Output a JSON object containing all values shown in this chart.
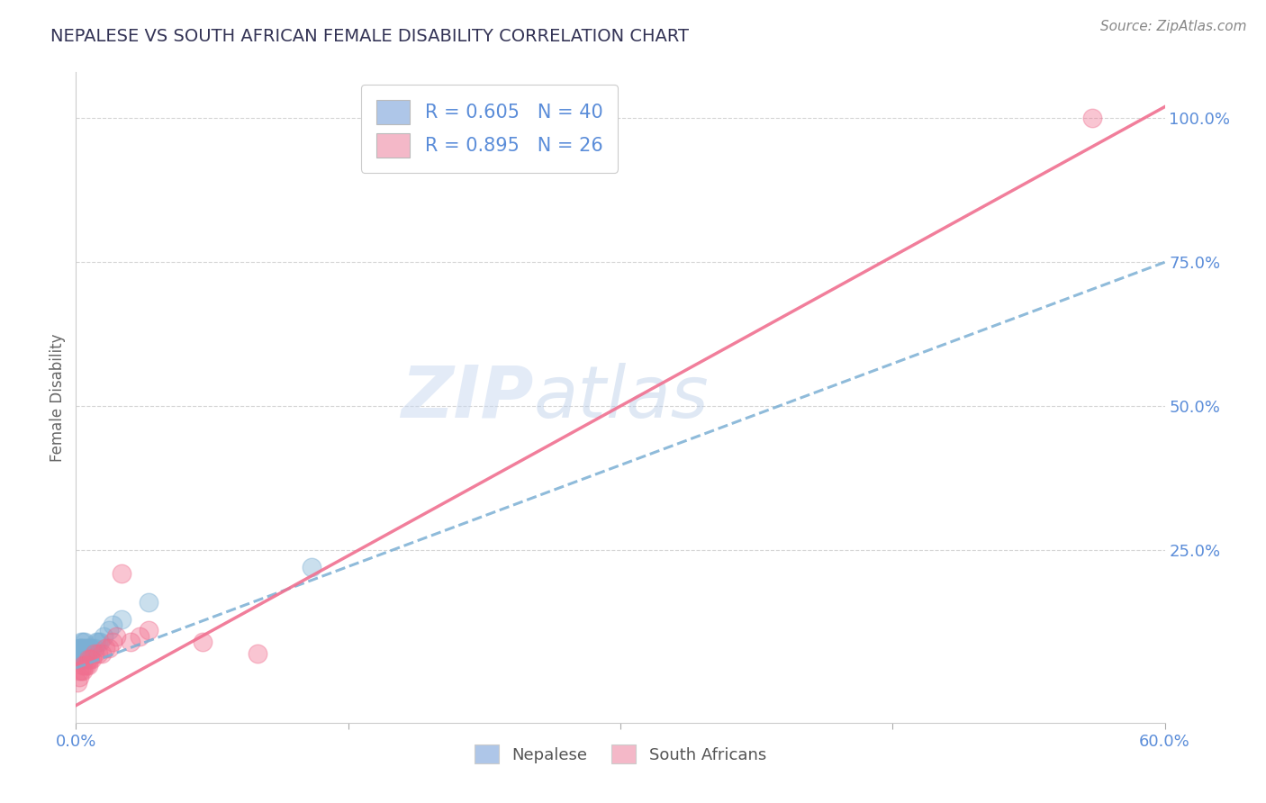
{
  "title": "NEPALESE VS SOUTH AFRICAN FEMALE DISABILITY CORRELATION CHART",
  "source": "Source: ZipAtlas.com",
  "ylabel": "Female Disability",
  "xlim": [
    0.0,
    0.6
  ],
  "ylim": [
    -0.05,
    1.08
  ],
  "yticks": [
    0.25,
    0.5,
    0.75,
    1.0
  ],
  "ytick_labels": [
    "25.0%",
    "50.0%",
    "75.0%",
    "100.0%"
  ],
  "xtick_positions": [
    0.0,
    0.15,
    0.3,
    0.45,
    0.6
  ],
  "xtick_labels": [
    "0.0%",
    "",
    "",
    "",
    "60.0%"
  ],
  "legend_entries": [
    {
      "label": "R = 0.605   N = 40",
      "color": "#aec6e8"
    },
    {
      "label": "R = 0.895   N = 26",
      "color": "#f4b8c8"
    }
  ],
  "bottom_legend": [
    "Nepalese",
    "South Africans"
  ],
  "bottom_legend_colors": [
    "#aec6e8",
    "#f4b8c8"
  ],
  "watermark": "ZIPatlas",
  "blue_scatter_x": [
    0.001,
    0.001,
    0.001,
    0.002,
    0.002,
    0.002,
    0.002,
    0.003,
    0.003,
    0.003,
    0.003,
    0.003,
    0.003,
    0.004,
    0.004,
    0.004,
    0.004,
    0.004,
    0.005,
    0.005,
    0.005,
    0.005,
    0.006,
    0.006,
    0.006,
    0.007,
    0.007,
    0.008,
    0.008,
    0.009,
    0.01,
    0.011,
    0.012,
    0.013,
    0.015,
    0.018,
    0.02,
    0.025,
    0.04,
    0.13
  ],
  "blue_scatter_y": [
    0.06,
    0.07,
    0.07,
    0.06,
    0.07,
    0.08,
    0.08,
    0.06,
    0.07,
    0.07,
    0.08,
    0.08,
    0.09,
    0.06,
    0.07,
    0.07,
    0.08,
    0.09,
    0.06,
    0.07,
    0.08,
    0.09,
    0.07,
    0.07,
    0.08,
    0.07,
    0.08,
    0.07,
    0.08,
    0.08,
    0.08,
    0.09,
    0.09,
    0.09,
    0.1,
    0.11,
    0.12,
    0.13,
    0.16,
    0.22
  ],
  "pink_scatter_x": [
    0.001,
    0.002,
    0.002,
    0.003,
    0.004,
    0.004,
    0.005,
    0.006,
    0.007,
    0.007,
    0.008,
    0.009,
    0.01,
    0.012,
    0.014,
    0.016,
    0.018,
    0.02,
    0.022,
    0.025,
    0.03,
    0.035,
    0.04,
    0.07,
    0.1,
    0.56
  ],
  "pink_scatter_y": [
    0.02,
    0.03,
    0.04,
    0.04,
    0.04,
    0.05,
    0.05,
    0.05,
    0.05,
    0.06,
    0.06,
    0.06,
    0.07,
    0.07,
    0.07,
    0.08,
    0.08,
    0.09,
    0.1,
    0.21,
    0.09,
    0.1,
    0.11,
    0.09,
    0.07,
    1.0
  ],
  "blue_line_x": [
    0.0,
    0.6
  ],
  "blue_line_y": [
    0.045,
    0.75
  ],
  "pink_line_x": [
    0.0,
    0.6
  ],
  "pink_line_y": [
    -0.02,
    1.02
  ],
  "grid_color": "#d5d5d5",
  "blue_color": "#7bafd4",
  "pink_color": "#f07090",
  "title_color": "#333355",
  "tick_color": "#5b8dd9"
}
